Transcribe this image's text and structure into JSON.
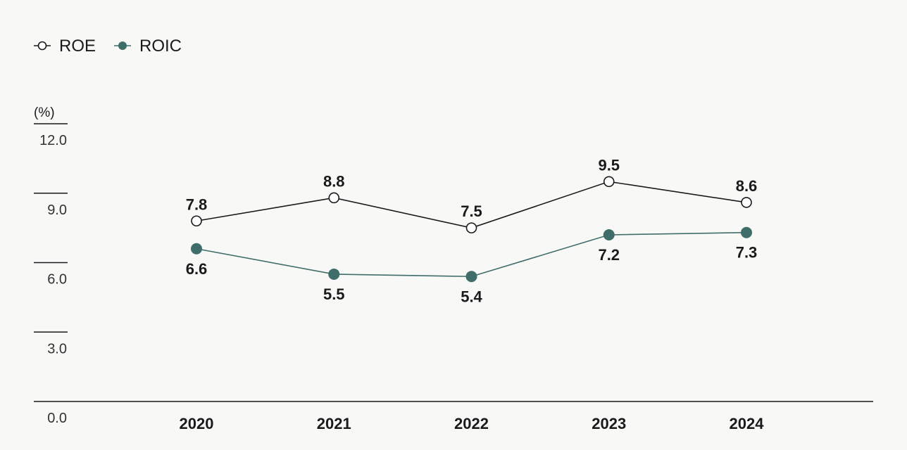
{
  "chart_data": {
    "type": "line",
    "title": "",
    "xlabel": "",
    "ylabel": "(%)",
    "unit": "(%)",
    "categories": [
      "2020",
      "2021",
      "2022",
      "2023",
      "2024"
    ],
    "ylim": [
      0,
      12
    ],
    "yticks": [
      "0.0",
      "3.0",
      "6.0",
      "9.0",
      "12.0"
    ],
    "grid": false,
    "legend_position": "top-left",
    "series": [
      {
        "name": "ROE",
        "values": [
          7.8,
          8.8,
          7.5,
          9.5,
          8.6
        ],
        "labels": [
          "7.8",
          "8.8",
          "7.5",
          "9.5",
          "8.6"
        ],
        "color": "#1a1a1a",
        "marker": "hollow-circle",
        "label_position": "above"
      },
      {
        "name": "ROIC",
        "values": [
          6.6,
          5.5,
          5.4,
          7.2,
          7.3
        ],
        "labels": [
          "6.6",
          "5.5",
          "5.4",
          "7.2",
          "7.3"
        ],
        "color": "#3f6e6a",
        "marker": "filled-circle",
        "label_position": "below"
      }
    ]
  }
}
